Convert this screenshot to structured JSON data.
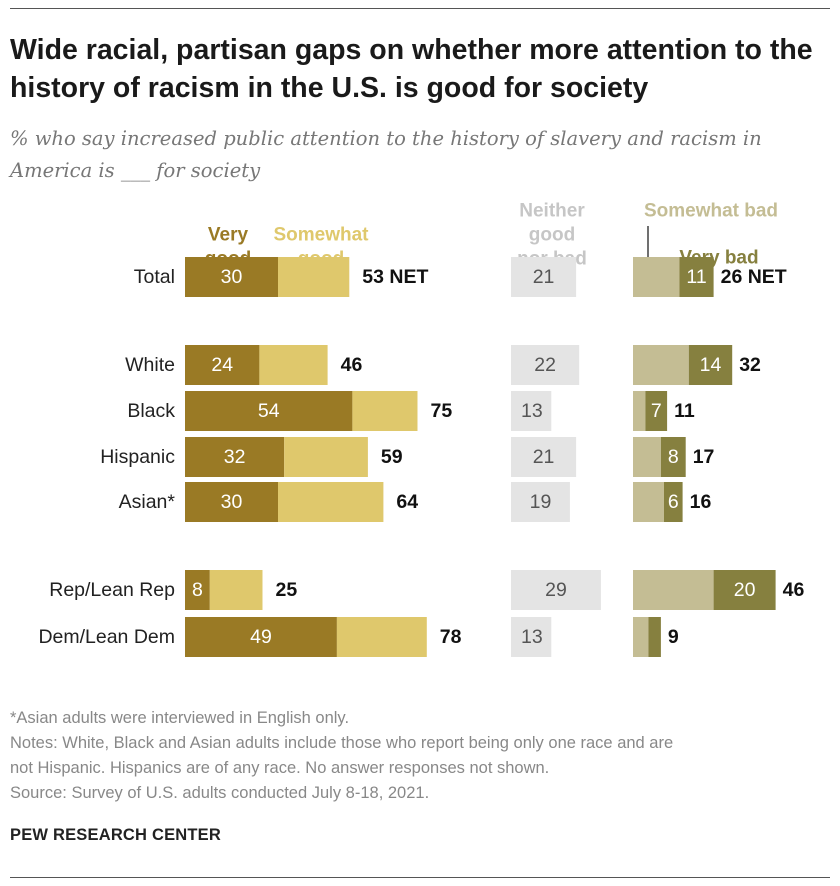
{
  "title": "Wide racial, partisan gaps on whether more attention to the history of racism in the U.S. is good for society",
  "subtitle": "% who say increased public attention to the history of slavery and racism in America is ___ for society",
  "colors": {
    "very_good": "#9a7a25",
    "somewhat_good": "#dfc86c",
    "neither": "#e4e4e4",
    "somewhat_bad": "#c4bd94",
    "very_bad": "#86803f",
    "very_good_label": "#9a7a25",
    "somewhat_good_label": "#dfc86c",
    "neither_label": "#c6c6c6",
    "somewhat_bad_label": "#c4bd94",
    "very_bad_label": "#86803f"
  },
  "chart_data": {
    "type": "bar",
    "orientation": "horizontal-stacked",
    "legend": {
      "very_good": "Very good",
      "somewhat_good": "Somewhat good",
      "neither": "Neither good nor bad",
      "somewhat_bad": "Somewhat bad",
      "very_bad": "Very bad"
    },
    "net_suffix": "NET",
    "rows": [
      {
        "label": "Total",
        "very_good": 30,
        "somewhat_good": 23,
        "good_net": 53,
        "neither": 21,
        "somewhat_bad": 15,
        "very_bad": 11,
        "bad_net": 26,
        "show_net": true
      },
      {
        "label": "White",
        "very_good": 24,
        "somewhat_good": 22,
        "good_net": 46,
        "neither": 22,
        "somewhat_bad": 18,
        "very_bad": 14,
        "bad_net": 32
      },
      {
        "label": "Black",
        "very_good": 54,
        "somewhat_good": 21,
        "good_net": 75,
        "neither": 13,
        "somewhat_bad": 4,
        "very_bad": 7,
        "bad_net": 11
      },
      {
        "label": "Hispanic",
        "very_good": 32,
        "somewhat_good": 27,
        "good_net": 59,
        "neither": 21,
        "somewhat_bad": 9,
        "very_bad": 8,
        "bad_net": 17
      },
      {
        "label": "Asian*",
        "very_good": 30,
        "somewhat_good": 34,
        "good_net": 64,
        "neither": 19,
        "somewhat_bad": 10,
        "very_bad": 6,
        "bad_net": 16
      },
      {
        "label": "Rep/Lean Rep",
        "very_good": 8,
        "somewhat_good": 17,
        "good_net": 25,
        "neither": 29,
        "somewhat_bad": 26,
        "very_bad": 20,
        "bad_net": 46
      },
      {
        "label": "Dem/Lean Dem",
        "very_good": 49,
        "somewhat_good": 29,
        "good_net": 78,
        "neither": 13,
        "somewhat_bad": 5,
        "very_bad": 4,
        "bad_net": 9,
        "hide_very_bad_label": true
      }
    ]
  },
  "footnote": "*Asian adults were interviewed in English only.",
  "notes": [
    "Notes: White, Black and Asian adults include those who report being only one race and are",
    "not Hispanic. Hispanics are of any race. No answer responses not shown."
  ],
  "source": "Source: Survey of U.S. adults conducted July 8-18, 2021.",
  "brand": "PEW RESEARCH CENTER"
}
